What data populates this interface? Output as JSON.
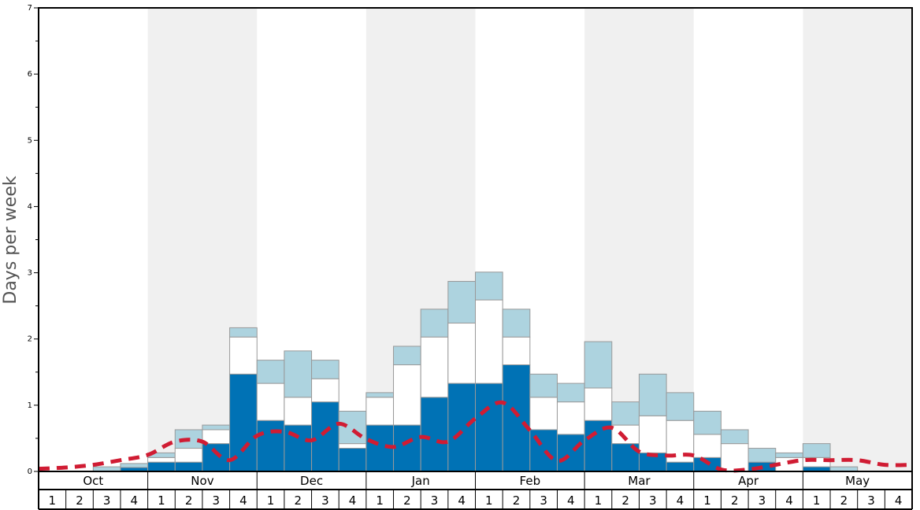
{
  "chart_data": {
    "type": "bar",
    "ylabel": "Days per week",
    "ylim": [
      0,
      7
    ],
    "y_ticks": [
      "0",
      "1",
      "2",
      "3",
      "4",
      "5",
      "6",
      "7"
    ],
    "months": [
      "Oct",
      "Nov",
      "Dec",
      "Jan",
      "Feb",
      "Mar",
      "Apr",
      "May"
    ],
    "week_labels": [
      "1",
      "2",
      "3",
      "4"
    ],
    "colors": {
      "bottom": "#0072b5",
      "middle": "#ffffff",
      "top": "#add3df",
      "line": "#d01c33",
      "shade": "#f0f0f0"
    },
    "series": [
      {
        "values": [
          0,
          0,
          0,
          0.06,
          0.14,
          0.14,
          0.42,
          1.47,
          0.77,
          0.7,
          1.05,
          0.35,
          0.7,
          0.7,
          1.12,
          1.33,
          1.33,
          1.61,
          0.63,
          0.56,
          0.77,
          0.42,
          0.28,
          0.14,
          0.21,
          0,
          0.14,
          0,
          0.07,
          0,
          0,
          0
        ]
      },
      {
        "values": [
          0,
          0,
          0,
          0,
          0.07,
          0.21,
          0.21,
          0.56,
          0.56,
          0.42,
          0.35,
          0.07,
          0.42,
          0.91,
          0.91,
          0.91,
          1.26,
          0.42,
          0.49,
          0.49,
          0.49,
          0.28,
          0.56,
          0.63,
          0.35,
          0.42,
          0,
          0.21,
          0.14,
          0,
          0,
          0
        ]
      },
      {
        "values": [
          0,
          0,
          0.07,
          0.06,
          0.07,
          0.28,
          0.07,
          0.14,
          0.35,
          0.7,
          0.28,
          0.49,
          0.07,
          0.28,
          0.42,
          0.63,
          0.42,
          0.42,
          0.35,
          0.28,
          0.7,
          0.35,
          0.63,
          0.42,
          0.35,
          0.21,
          0.21,
          0.07,
          0.21,
          0.07,
          0,
          0
        ]
      }
    ],
    "line": {
      "values": [
        0.04,
        0.06,
        0.1,
        0.17,
        0.25,
        0.45,
        0.45,
        0.17,
        0.54,
        0.6,
        0.47,
        0.72,
        0.49,
        0.37,
        0.52,
        0.45,
        0.8,
        1.04,
        0.62,
        0.16,
        0.47,
        0.66,
        0.3,
        0.24,
        0.24,
        0.03,
        0.03,
        0.1,
        0.17,
        0.17,
        0.17,
        0.1,
        0.1
      ]
    }
  }
}
